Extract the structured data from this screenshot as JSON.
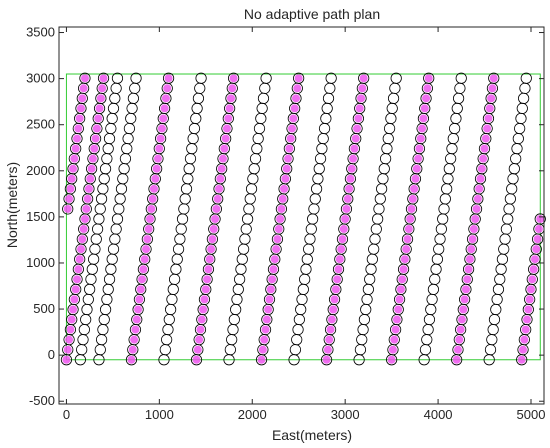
{
  "chart_data": {
    "type": "scatter",
    "title": "No adaptive path plan",
    "xlabel": "East(meters)",
    "ylabel": "North(meters)",
    "xlim": [
      -80,
      5140
    ],
    "ylim": [
      -530,
      3560
    ],
    "xticks": [
      0,
      1000,
      2000,
      3000,
      4000,
      5000
    ],
    "yticks": [
      -500,
      0,
      500,
      1000,
      1500,
      2000,
      2500,
      3000,
      3500
    ],
    "grid": false,
    "legend": "none",
    "boundary": {
      "x": [
        0,
        5100
      ],
      "y": [
        -50,
        3050
      ]
    },
    "path": {
      "slope": 7.65,
      "line_spacing": 350,
      "num_lines": 16,
      "x_offset": 0,
      "point_spacing": 110
    },
    "colors": {
      "boundary": "#33cc33",
      "circle": "#000000",
      "highlight": "#ee55ee",
      "axis": "#262626"
    }
  }
}
